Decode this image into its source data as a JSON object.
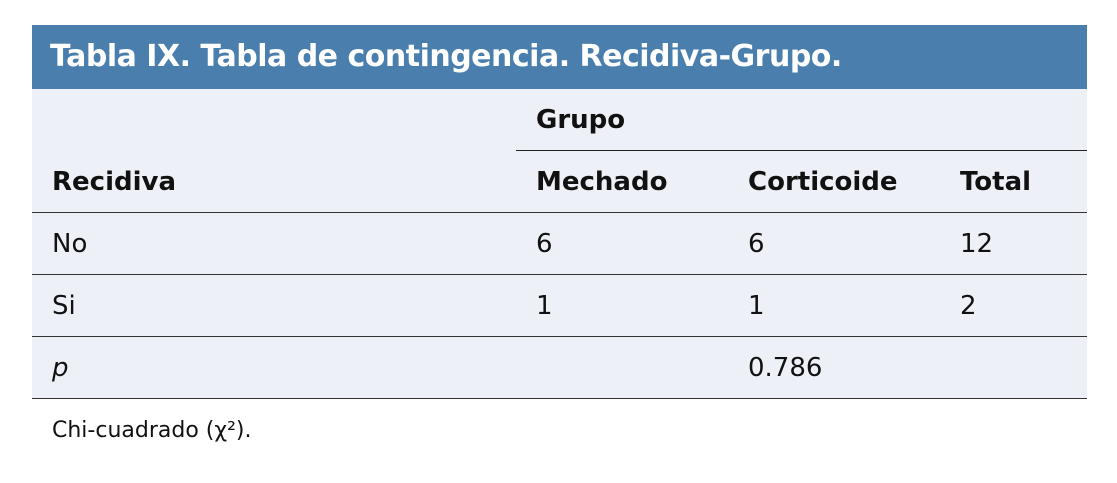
{
  "title": "Tabla IX. Tabla de contingencia. Recidiva-Grupo.",
  "group_header": "Grupo",
  "columns": [
    "Recidiva",
    "Mechado",
    "Corticoide",
    "Total"
  ],
  "rows": [
    [
      "No",
      "6",
      "6",
      "12"
    ],
    [
      "Si",
      "1",
      "1",
      "2"
    ]
  ],
  "p_row": {
    "label": "p",
    "value": "0.786"
  },
  "footnote": "Chi-cuadrado (χ²).",
  "colors": {
    "header_bg": "#4a7fad",
    "table_bg": "#edf0f7"
  }
}
